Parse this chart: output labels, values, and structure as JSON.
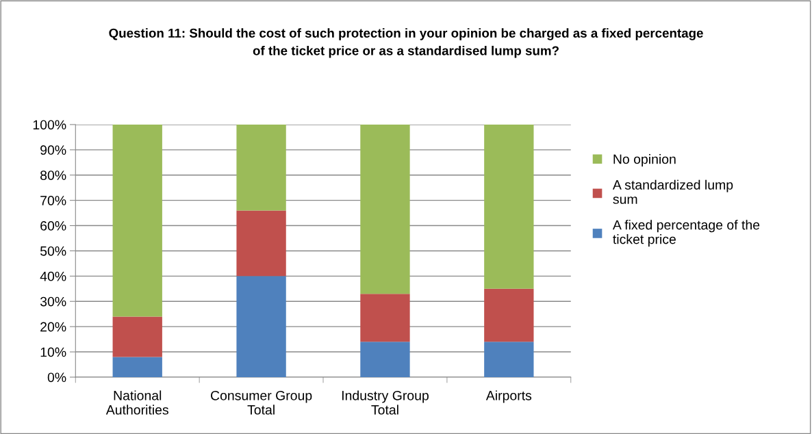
{
  "chart_data": {
    "type": "bar",
    "stacked": true,
    "title": "Question 11: Should the cost of such protection in your opinion be charged as a fixed percentage\nof the ticket price or as a standardised lump sum?",
    "categories": [
      "National\nAuthorities",
      "Consumer Group\nTotal",
      "Industry Group\nTotal",
      "Airports"
    ],
    "series": [
      {
        "name": "A fixed percentage of the\nticket price",
        "color": "#4f81bd",
        "values": [
          8,
          40,
          14,
          14
        ]
      },
      {
        "name": "A standardized lump\nsum",
        "color": "#c0504d",
        "values": [
          16,
          26,
          19,
          21
        ]
      },
      {
        "name": "No opinion",
        "color": "#9bbb59",
        "values": [
          76,
          34,
          67,
          65
        ]
      }
    ],
    "ylim": [
      0,
      100
    ],
    "yticks": [
      {
        "value": 0,
        "label": "0%"
      },
      {
        "value": 10,
        "label": "10%"
      },
      {
        "value": 20,
        "label": "20%"
      },
      {
        "value": 30,
        "label": "30%"
      },
      {
        "value": 40,
        "label": "40%"
      },
      {
        "value": 50,
        "label": "50%"
      },
      {
        "value": 60,
        "label": "60%"
      },
      {
        "value": 70,
        "label": "70%"
      },
      {
        "value": 80,
        "label": "80%"
      },
      {
        "value": 90,
        "label": "90%"
      },
      {
        "value": 100,
        "label": "100%"
      }
    ],
    "grid": "y",
    "legend": "right"
  }
}
